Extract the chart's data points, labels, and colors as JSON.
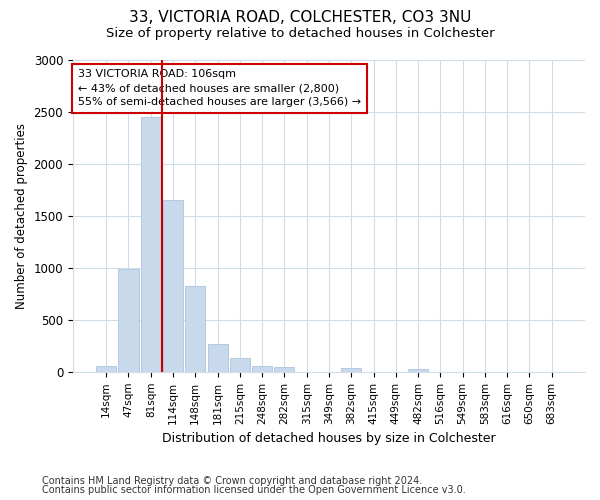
{
  "title_line1": "33, VICTORIA ROAD, COLCHESTER, CO3 3NU",
  "title_line2": "Size of property relative to detached houses in Colchester",
  "xlabel": "Distribution of detached houses by size in Colchester",
  "ylabel": "Number of detached properties",
  "categories": [
    "14sqm",
    "47sqm",
    "81sqm",
    "114sqm",
    "148sqm",
    "181sqm",
    "215sqm",
    "248sqm",
    "282sqm",
    "315sqm",
    "349sqm",
    "382sqm",
    "415sqm",
    "449sqm",
    "482sqm",
    "516sqm",
    "549sqm",
    "583sqm",
    "616sqm",
    "650sqm",
    "683sqm"
  ],
  "values": [
    60,
    990,
    2450,
    1650,
    830,
    270,
    130,
    55,
    45,
    0,
    0,
    40,
    0,
    0,
    25,
    0,
    0,
    0,
    0,
    0,
    0
  ],
  "bar_color": "#c9d9ec",
  "bar_edge_color": "#adc4df",
  "vline_color": "#cc0000",
  "annotation_text": "33 VICTORIA ROAD: 106sqm\n← 43% of detached houses are smaller (2,800)\n55% of semi-detached houses are larger (3,566) →",
  "annotation_box_color": "#ffffff",
  "annotation_box_edge": "#cc0000",
  "ylim": [
    0,
    3000
  ],
  "yticks": [
    0,
    500,
    1000,
    1500,
    2000,
    2500,
    3000
  ],
  "footnote1": "Contains HM Land Registry data © Crown copyright and database right 2024.",
  "footnote2": "Contains public sector information licensed under the Open Government Licence v3.0.",
  "bg_color": "#ffffff",
  "plot_bg_color": "#ffffff",
  "grid_color": "#d0dce8"
}
